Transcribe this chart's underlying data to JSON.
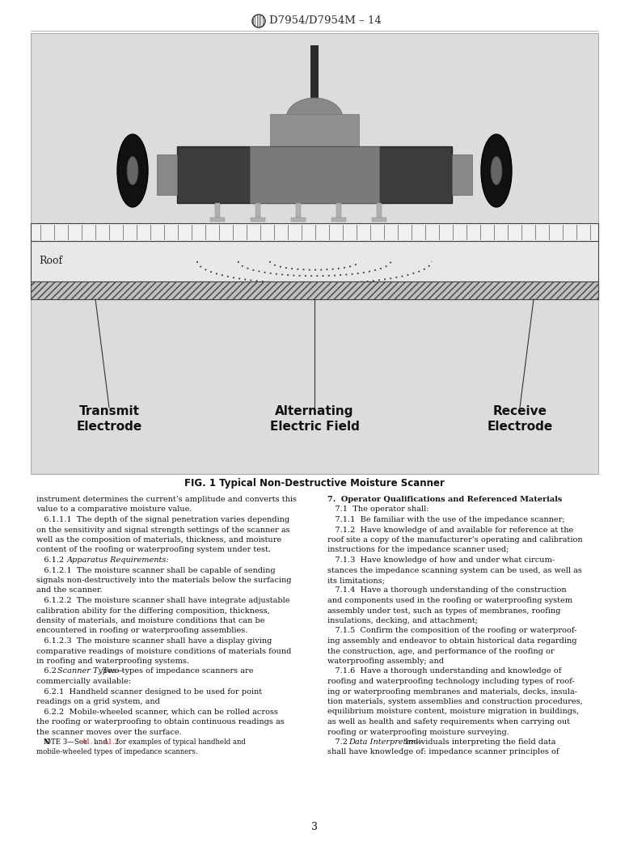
{
  "page_bg": "#ffffff",
  "fig_bg": "#e0e0e0",
  "header_text": "D7954/D7954M – 14",
  "fig_caption": "FIG. 1 Typical Non-Destructive Moisture Scanner",
  "page_number": "3",
  "transmit_label": "Transmit\nElectrode",
  "center_label": "Alternating\nElectric Field",
  "receive_label": "Receive\nElectrode",
  "roof_label": "Roof",
  "left_col_text": [
    "instrument determines the current’s amplitude and converts this",
    "value to a comparative moisture value.",
    "   6.1.1.1  The depth of the signal penetration varies depending",
    "on the sensitivity and signal strength settings of the scanner as",
    "well as the composition of materials, thickness, and moisture",
    "content of the roofing or waterproofing system under test.",
    "   6.1.2  Apparatus Requirements:",
    "   6.1.2.1  The moisture scanner shall be capable of sending",
    "signals non-destructively into the materials below the surfacing",
    "and the scanner.",
    "   6.1.2.2  The moisture scanner shall have integrate adjustable",
    "calibration ability for the differing composition, thickness,",
    "density of materials, and moisture conditions that can be",
    "encountered in roofing or waterproofing assemblies.",
    "   6.1.2.3  The moisture scanner shall have a display giving",
    "comparative readings of moisture conditions of materials found",
    "in roofing and waterproofing systems.",
    "   6.2  Scanner Types—Two types of impedance scanners are",
    "commercially available:",
    "   6.2.1  Handheld scanner designed to be used for point",
    "readings on a grid system, and",
    "   6.2.2  Mobile-wheeled scanner, which can be rolled across",
    "the roofing or waterproofing to obtain continuous readings as",
    "the scanner moves over the surface.",
    "   NOTE 3—See A1.1 and A1.2 for examples of typical handheld and",
    "mobile-wheeled types of impedance scanners."
  ],
  "right_col_text": [
    "7.  Operator Qualifications and Referenced Materials",
    "   7.1  The operator shall:",
    "   7.1.1  Be familiar with the use of the impedance scanner;",
    "   7.1.2  Have knowledge of and available for reference at the",
    "roof site a copy of the manufacturer’s operating and calibration",
    "instructions for the impedance scanner used;",
    "   7.1.3  Have knowledge of how and under what circum-",
    "stances the impedance scanning system can be used, as well as",
    "its limitations;",
    "   7.1.4  Have a thorough understanding of the construction",
    "and components used in the roofing or waterproofing system",
    "assembly under test, such as types of membranes, roofing",
    "insulations, decking, and attachment;",
    "   7.1.5  Confirm the composition of the roofing or waterproof-",
    "ing assembly and endeavor to obtain historical data regarding",
    "the construction, age, and performance of the roofing or",
    "waterproofing assembly; and",
    "   7.1.6  Have a thorough understanding and knowledge of",
    "roofing and waterproofing technology including types of roof-",
    "ing or waterproofing membranes and materials, decks, insula-",
    "tion materials, system assemblies and construction procedures,",
    "equilibrium moisture content, moisture migration in buildings,",
    "as well as health and safety requirements when carrying out",
    "roofing or waterproofing moisture surveying.",
    "   7.2  Data Interpreter—Individuals interpreting the field data",
    "shall have knowledge of: impedance scanner principles of"
  ]
}
